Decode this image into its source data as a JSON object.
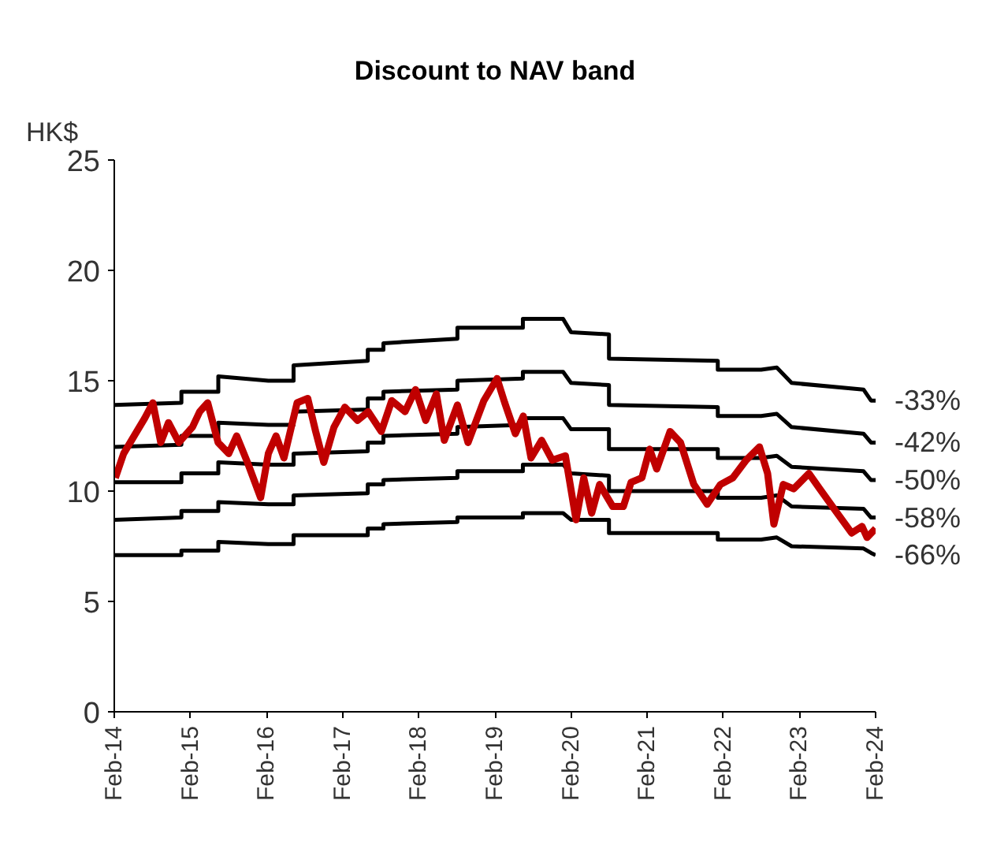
{
  "chart_data": {
    "type": "line",
    "title": "Discount to NAV band",
    "ylabel": "HK$",
    "xlim": [
      "2014-02-01",
      "2024-02-01"
    ],
    "ylim": [
      0,
      25
    ],
    "yticks": [
      0,
      5,
      10,
      15,
      20,
      25
    ],
    "xticks": [
      {
        "value": "2014-02-01",
        "label": "Feb-14"
      },
      {
        "value": "2015-02-01",
        "label": "Feb-15"
      },
      {
        "value": "2016-02-01",
        "label": "Feb-16"
      },
      {
        "value": "2017-02-01",
        "label": "Feb-17"
      },
      {
        "value": "2018-02-01",
        "label": "Feb-18"
      },
      {
        "value": "2019-02-01",
        "label": "Feb-19"
      },
      {
        "value": "2020-02-01",
        "label": "Feb-20"
      },
      {
        "value": "2021-02-01",
        "label": "Feb-21"
      },
      {
        "value": "2022-02-01",
        "label": "Feb-22"
      },
      {
        "value": "2023-02-01",
        "label": "Feb-23"
      },
      {
        "value": "2024-02-01",
        "label": "Feb-24"
      }
    ],
    "grid": false,
    "legend": false,
    "x": [
      "2014-02-01",
      "2014-12-20",
      "2014-12-20",
      "2015-06-15",
      "2015-06-15",
      "2016-02-10",
      "2016-06-10",
      "2016-06-10",
      "2017-06-01",
      "2017-06-01",
      "2017-08-15",
      "2017-08-15",
      "2018-08-05",
      "2018-08-05",
      "2019-06-15",
      "2019-06-15",
      "2019-12-25",
      "2020-02-01",
      "2020-08-01",
      "2020-08-01",
      "2022-01-05",
      "2022-01-05",
      "2022-08-01",
      "2022-10-15",
      "2022-12-25",
      "2023-12-05",
      "2024-01-10",
      "2024-02-01"
    ],
    "series": [
      {
        "name": "-33%",
        "color": "#000000",
        "values": [
          13.9,
          14.0,
          14.5,
          14.5,
          15.2,
          15.0,
          15.0,
          15.7,
          15.9,
          16.4,
          16.4,
          16.7,
          16.9,
          17.4,
          17.4,
          17.8,
          17.8,
          17.2,
          17.1,
          16.0,
          15.9,
          15.5,
          15.5,
          15.6,
          14.9,
          14.6,
          14.1,
          14.1
        ]
      },
      {
        "name": "-42%",
        "color": "#000000",
        "values": [
          12.0,
          12.1,
          12.5,
          12.5,
          13.1,
          13.0,
          13.0,
          13.6,
          13.7,
          14.2,
          14.2,
          14.5,
          14.6,
          15.0,
          15.1,
          15.4,
          15.4,
          14.9,
          14.8,
          13.9,
          13.8,
          13.4,
          13.4,
          13.5,
          12.9,
          12.6,
          12.2,
          12.2
        ]
      },
      {
        "name": "-50%",
        "color": "#000000",
        "values": [
          10.4,
          10.4,
          10.8,
          10.8,
          11.3,
          11.2,
          11.2,
          11.7,
          11.8,
          12.2,
          12.2,
          12.5,
          12.6,
          12.9,
          13.0,
          13.3,
          13.3,
          12.8,
          12.8,
          11.9,
          11.9,
          11.5,
          11.5,
          11.6,
          11.1,
          10.9,
          10.5,
          10.5
        ]
      },
      {
        "name": "-58%",
        "color": "#000000",
        "values": [
          8.7,
          8.8,
          9.1,
          9.1,
          9.5,
          9.4,
          9.4,
          9.8,
          9.9,
          10.3,
          10.3,
          10.5,
          10.6,
          10.9,
          10.9,
          11.2,
          11.2,
          10.8,
          10.7,
          10.0,
          10.0,
          9.7,
          9.7,
          9.8,
          9.3,
          9.2,
          8.8,
          8.8
        ]
      },
      {
        "name": "-66%",
        "color": "#000000",
        "values": [
          7.1,
          7.1,
          7.3,
          7.3,
          7.7,
          7.6,
          7.6,
          8.0,
          8.0,
          8.3,
          8.3,
          8.5,
          8.6,
          8.8,
          8.8,
          9.0,
          9.0,
          8.7,
          8.7,
          8.1,
          8.1,
          7.8,
          7.8,
          7.9,
          7.5,
          7.4,
          7.2,
          7.1
        ]
      },
      {
        "color": "#c00000",
        "x": [
          "2014-02-06",
          "2014-03-18",
          "2014-05-20",
          "2014-06-27",
          "2014-08-05",
          "2014-09-12",
          "2014-10-19",
          "2014-12-08",
          "2015-02-11",
          "2015-03-18",
          "2015-04-25",
          "2015-06-14",
          "2015-08-04",
          "2015-09-11",
          "2015-11-02",
          "2016-01-04",
          "2016-02-10",
          "2016-03-18",
          "2016-04-25",
          "2016-06-27",
          "2016-08-17",
          "2016-09-24",
          "2016-11-02",
          "2016-12-21",
          "2017-02-11",
          "2017-04-13",
          "2017-06-03",
          "2017-08-05",
          "2017-09-24",
          "2017-11-27",
          "2018-01-16",
          "2018-03-06",
          "2018-04-26",
          "2018-06-03",
          "2018-08-05",
          "2018-09-25",
          "2018-12-10",
          "2019-02-11",
          "2019-03-20",
          "2019-05-10",
          "2019-06-17",
          "2019-07-24",
          "2019-09-13",
          "2019-11-03",
          "2020-01-05",
          "2020-02-25",
          "2020-04-02",
          "2020-05-10",
          "2020-06-17",
          "2020-08-19",
          "2020-10-09",
          "2020-11-15",
          "2021-01-06",
          "2021-02-12",
          "2021-03-18",
          "2021-05-21",
          "2021-07-10",
          "2021-09-12",
          "2021-11-15",
          "2022-01-18",
          "2022-03-18",
          "2022-05-21",
          "2022-07-24",
          "2022-09-01",
          "2022-10-01",
          "2022-11-15",
          "2023-01-04",
          "2023-03-18",
          "2023-05-09",
          "2023-07-24",
          "2023-10-09",
          "2023-11-28",
          "2023-12-22",
          "2024-02-01"
        ],
        "values": [
          10.6,
          11.7,
          12.7,
          13.3,
          14.0,
          12.2,
          13.1,
          12.2,
          12.9,
          13.6,
          14.0,
          12.2,
          11.7,
          12.5,
          11.3,
          9.7,
          11.7,
          12.5,
          11.5,
          14.0,
          14.2,
          12.7,
          11.3,
          12.9,
          13.8,
          13.2,
          13.6,
          12.7,
          14.1,
          13.6,
          14.6,
          13.2,
          14.4,
          12.3,
          13.9,
          12.2,
          14.1,
          15.1,
          14.0,
          12.6,
          13.4,
          11.5,
          12.3,
          11.4,
          11.6,
          8.7,
          10.6,
          9.0,
          10.3,
          9.3,
          9.3,
          10.4,
          10.6,
          11.9,
          11.0,
          12.7,
          12.2,
          10.3,
          9.4,
          10.3,
          10.6,
          11.4,
          12.0,
          10.8,
          8.5,
          10.3,
          10.1,
          10.8,
          10.1,
          9.1,
          8.1,
          8.4,
          7.9,
          8.3
        ]
      }
    ]
  }
}
